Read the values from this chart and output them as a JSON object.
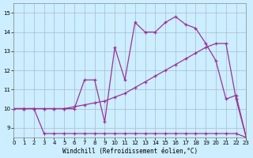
{
  "xlabel": "Windchill (Refroidissement éolien,°C)",
  "xlim": [
    0,
    23
  ],
  "ylim": [
    8.5,
    15.5
  ],
  "yticks": [
    9,
    10,
    11,
    12,
    13,
    14,
    15
  ],
  "xticks": [
    0,
    1,
    2,
    3,
    4,
    5,
    6,
    7,
    8,
    9,
    10,
    11,
    12,
    13,
    14,
    15,
    16,
    17,
    18,
    19,
    20,
    21,
    22,
    23
  ],
  "bg_color": "#cceeff",
  "line_color": "#993399",
  "grid_color": "#aabbcc",
  "line1_straight": {
    "x": [
      0,
      1,
      2,
      3,
      4,
      5,
      6,
      7,
      8,
      9,
      10,
      11,
      12,
      13,
      14,
      15,
      16,
      17,
      18,
      19,
      20,
      21,
      22,
      23
    ],
    "y": [
      10.0,
      10.0,
      10.0,
      10.0,
      10.0,
      10.0,
      10.1,
      10.2,
      10.3,
      10.4,
      10.6,
      10.8,
      11.1,
      11.4,
      11.7,
      12.0,
      12.3,
      12.6,
      12.9,
      13.2,
      13.4,
      13.4,
      10.5,
      8.5
    ]
  },
  "line2_flat": {
    "x": [
      0,
      1,
      2,
      3,
      4,
      5,
      6,
      7,
      8,
      9,
      10,
      11,
      12,
      13,
      14,
      15,
      16,
      17,
      18,
      19,
      20,
      21,
      22,
      23
    ],
    "y": [
      10.0,
      10.0,
      10.0,
      8.7,
      8.7,
      8.7,
      8.7,
      8.7,
      8.7,
      8.7,
      8.7,
      8.7,
      8.7,
      8.7,
      8.7,
      8.7,
      8.7,
      8.7,
      8.7,
      8.7,
      8.7,
      8.7,
      8.7,
      8.5
    ]
  },
  "line3_peak": {
    "x": [
      0,
      1,
      2,
      3,
      4,
      5,
      6,
      7,
      8,
      9,
      10,
      11,
      12,
      13,
      14,
      15,
      16,
      17,
      18,
      19,
      20,
      21,
      22,
      23
    ],
    "y": [
      10.0,
      10.0,
      10.0,
      10.0,
      10.0,
      10.0,
      10.0,
      11.5,
      11.5,
      9.3,
      13.2,
      11.5,
      14.5,
      14.0,
      14.0,
      14.5,
      14.8,
      14.4,
      14.2,
      13.4,
      12.5,
      10.5,
      10.7,
      8.5
    ]
  }
}
